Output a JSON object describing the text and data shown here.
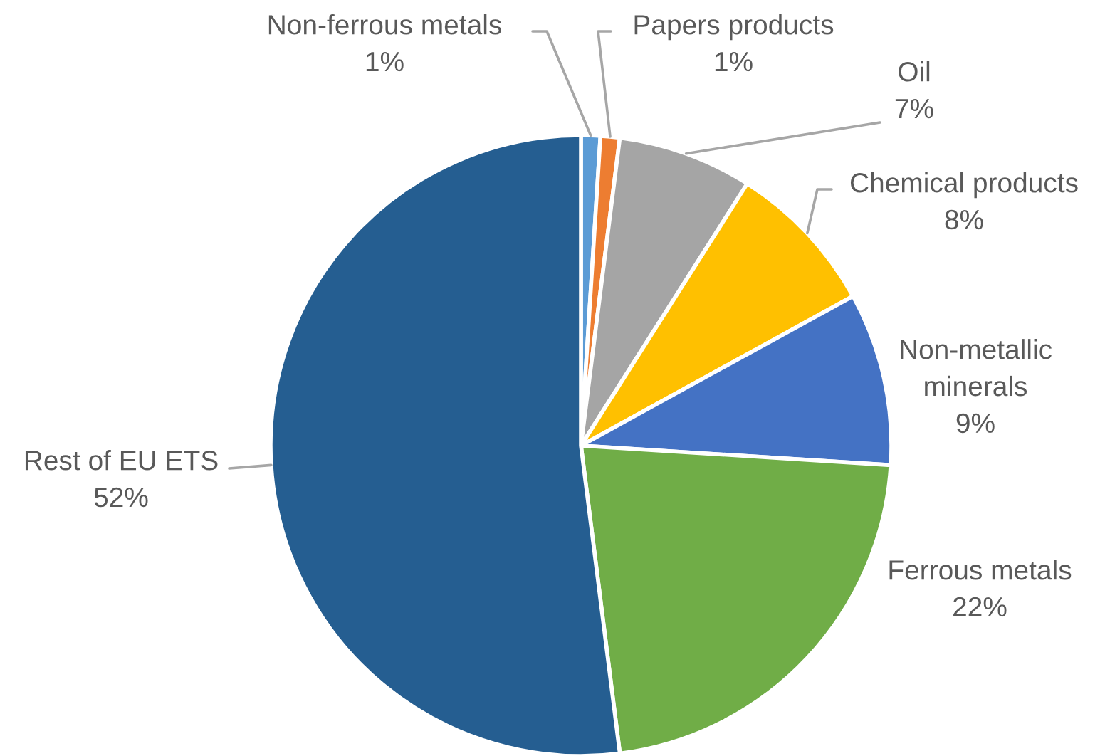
{
  "chart_data": {
    "type": "pie",
    "categories": [
      "Non-ferrous metals",
      "Papers products",
      "Oil",
      "Chemical products",
      "Non-metallic minerals",
      "Ferrous metals",
      "Rest of EU ETS"
    ],
    "values": [
      1,
      1,
      7,
      8,
      9,
      22,
      52
    ],
    "value_labels": [
      "1%",
      "1%",
      "7%",
      "8%",
      "9%",
      "22%",
      "52%"
    ],
    "colors": [
      "#5b9bd5",
      "#ed7d31",
      "#a5a5a5",
      "#ffc000",
      "#4472c4",
      "#70ad47",
      "#255e91"
    ]
  }
}
